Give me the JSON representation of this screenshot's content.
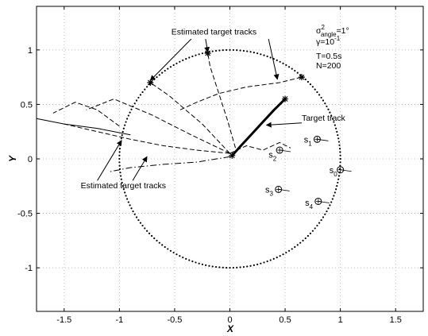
{
  "chart_data": {
    "type": "line",
    "xlabel": "X",
    "ylabel": "Y",
    "xlim": [
      -1.75,
      1.75
    ],
    "ylim": [
      -1.4,
      1.4
    ],
    "grid": true,
    "x_ticks": [
      -1.5,
      -1,
      -0.5,
      0,
      0.5,
      1,
      1.5
    ],
    "x_tick_labels": [
      "-1.5",
      "-1",
      "-0.5",
      "0",
      "0.5",
      "1",
      "1.5"
    ],
    "y_ticks": [
      -1,
      -0.5,
      0,
      0.5,
      1
    ],
    "y_tick_labels": [
      "-1",
      "-0.5",
      "0",
      "0.5",
      "1"
    ],
    "circle": {
      "center": [
        0,
        0
      ],
      "radius": 1,
      "style": "dotted"
    },
    "sensors": [
      {
        "label": "s",
        "index": "0",
        "x": 1.0,
        "y": -0.1,
        "label_x": 0.9,
        "label_y": -0.13
      },
      {
        "label": "s",
        "index": "1",
        "x": 0.79,
        "y": 0.18,
        "label_x": 0.67,
        "label_y": 0.15
      },
      {
        "label": "s",
        "index": "2",
        "x": 0.45,
        "y": 0.08,
        "label_x": 0.35,
        "label_y": 0.01
      },
      {
        "label": "s",
        "index": "3",
        "x": 0.44,
        "y": -0.28,
        "label_x": 0.32,
        "label_y": -0.31
      },
      {
        "label": "s",
        "index": "4",
        "x": 0.8,
        "y": -0.39,
        "label_x": 0.68,
        "label_y": -0.43
      }
    ],
    "series": [
      {
        "style": "solid-thick",
        "x": [
          0.02,
          0.1,
          0.2,
          0.3,
          0.4,
          0.5
        ],
        "y": [
          0.03,
          0.12,
          0.23,
          0.34,
          0.45,
          0.55
        ]
      },
      {
        "style": "dashed",
        "x": [
          0.0,
          -0.12,
          -0.25,
          -0.4,
          -0.55,
          -0.72
        ],
        "y": [
          0.05,
          0.18,
          0.32,
          0.45,
          0.58,
          0.7
        ]
      },
      {
        "style": "dashed",
        "x": [
          0.05,
          -0.02,
          -0.1,
          -0.18,
          -0.2
        ],
        "y": [
          0.1,
          0.35,
          0.6,
          0.85,
          0.97
        ]
      },
      {
        "style": "dashed",
        "x": [
          -0.45,
          -0.3,
          -0.1,
          0.15,
          0.45,
          0.65
        ],
        "y": [
          0.45,
          0.52,
          0.6,
          0.66,
          0.7,
          0.75
        ]
      },
      {
        "style": "dashed",
        "x": [
          0.0,
          -0.3,
          -0.6,
          -0.9,
          -1.2,
          -1.5
        ],
        "y": [
          0.05,
          0.08,
          0.12,
          0.18,
          0.25,
          0.32
        ]
      },
      {
        "style": "dashdot",
        "x": [
          0.0,
          -0.3,
          -0.6,
          -0.9,
          -1.1
        ],
        "y": [
          0.02,
          -0.03,
          -0.05,
          -0.08,
          -0.12
        ]
      },
      {
        "style": "solid",
        "x": [
          -0.9,
          -1.2,
          -1.5,
          -1.75
        ],
        "y": [
          0.22,
          0.28,
          0.32,
          0.37
        ]
      },
      {
        "style": "dashed",
        "x": [
          0.0,
          0.15,
          0.3,
          0.45,
          0.55
        ],
        "y": [
          0.05,
          0.12,
          0.08,
          0.15,
          0.1
        ]
      },
      {
        "style": "dashed",
        "x": [
          0.0,
          -0.35,
          -0.7,
          -1.05,
          -1.3
        ],
        "y": [
          0.05,
          0.22,
          0.4,
          0.55,
          0.45
        ]
      },
      {
        "style": "dashed",
        "x": [
          -1.0,
          -1.2,
          -1.4,
          -1.6
        ],
        "y": [
          0.3,
          0.45,
          0.52,
          0.42
        ]
      }
    ],
    "annotations": [
      {
        "id": "top",
        "text": "Estimated target tracks",
        "x": -0.53,
        "y": 1.14
      },
      {
        "id": "bottom",
        "text": "Estimated target tracks",
        "x": -1.35,
        "y": -0.27
      },
      {
        "id": "target",
        "text": "Target track",
        "x": 0.65,
        "y": 0.35
      }
    ],
    "params": {
      "sigma_line": "σ",
      "sigma_sup": "2",
      "sigma_sub": "angle",
      "sigma_value": "=1°",
      "gamma_line": "γ=10",
      "gamma_sup": "-1",
      "T": "T=0.5s",
      "N": "N=200"
    }
  }
}
